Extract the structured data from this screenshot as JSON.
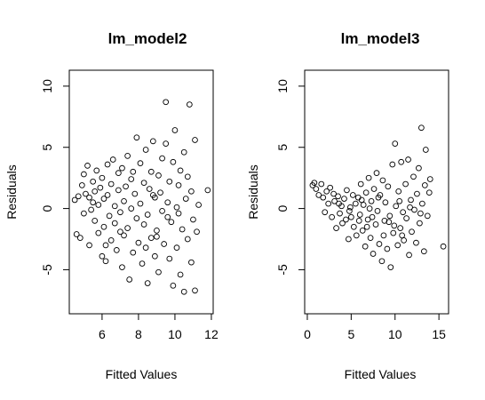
{
  "chart_data": [
    {
      "type": "scatter",
      "title": "lm_model2",
      "xlabel": "Fitted Values",
      "ylabel": "Residuals",
      "xlim": [
        4.2,
        12.1
      ],
      "ylim": [
        -8.6,
        11.3
      ],
      "xticks": [
        6,
        8,
        10,
        12
      ],
      "yticks": [
        -5,
        0,
        5,
        10
      ],
      "points": [
        [
          4.5,
          0.7
        ],
        [
          4.6,
          -2.1
        ],
        [
          4.7,
          1.0
        ],
        [
          4.8,
          -2.4
        ],
        [
          4.9,
          1.9
        ],
        [
          5.0,
          2.8
        ],
        [
          5.0,
          -0.4
        ],
        [
          5.1,
          1.2
        ],
        [
          5.2,
          3.5
        ],
        [
          5.3,
          -3.0
        ],
        [
          5.3,
          0.9
        ],
        [
          5.4,
          -0.1
        ],
        [
          5.5,
          2.2
        ],
        [
          5.6,
          1.4
        ],
        [
          5.6,
          -1.0
        ],
        [
          5.7,
          3.1
        ],
        [
          5.8,
          -2.0
        ],
        [
          5.8,
          0.3
        ],
        [
          5.9,
          1.7
        ],
        [
          6.0,
          -3.9
        ],
        [
          6.0,
          2.5
        ],
        [
          6.1,
          -1.5
        ],
        [
          6.1,
          0.8
        ],
        [
          6.2,
          -4.3
        ],
        [
          6.3,
          1.1
        ],
        [
          6.3,
          3.6
        ],
        [
          6.4,
          -0.6
        ],
        [
          6.5,
          2.0
        ],
        [
          6.5,
          -2.6
        ],
        [
          6.6,
          4.0
        ],
        [
          6.7,
          -1.2
        ],
        [
          6.7,
          0.2
        ],
        [
          6.8,
          -3.4
        ],
        [
          6.9,
          1.5
        ],
        [
          6.9,
          2.9
        ],
        [
          7.0,
          -0.3
        ],
        [
          7.1,
          -4.8
        ],
        [
          7.1,
          3.3
        ],
        [
          7.2,
          0.6
        ],
        [
          7.2,
          -2.2
        ],
        [
          7.3,
          1.8
        ],
        [
          7.4,
          -1.6
        ],
        [
          7.4,
          4.3
        ],
        [
          7.5,
          -5.8
        ],
        [
          7.6,
          0.0
        ],
        [
          7.6,
          2.4
        ],
        [
          7.7,
          -3.6
        ],
        [
          7.8,
          1.2
        ],
        [
          7.9,
          -0.8
        ],
        [
          7.9,
          5.8
        ],
        [
          8.0,
          -2.8
        ],
        [
          8.1,
          3.7
        ],
        [
          8.1,
          0.4
        ],
        [
          8.2,
          -4.5
        ],
        [
          8.3,
          2.1
        ],
        [
          8.3,
          -1.3
        ],
        [
          8.4,
          4.8
        ],
        [
          8.5,
          -0.5
        ],
        [
          8.5,
          -6.1
        ],
        [
          8.6,
          1.6
        ],
        [
          8.7,
          -2.4
        ],
        [
          8.7,
          3.0
        ],
        [
          8.8,
          5.5
        ],
        [
          8.9,
          -3.9
        ],
        [
          8.9,
          0.9
        ],
        [
          9.0,
          -1.8
        ],
        [
          9.1,
          2.7
        ],
        [
          9.1,
          -5.2
        ],
        [
          9.2,
          1.3
        ],
        [
          9.3,
          -0.2
        ],
        [
          9.3,
          4.1
        ],
        [
          9.4,
          -2.9
        ],
        [
          9.5,
          5.3
        ],
        [
          9.5,
          8.7
        ],
        [
          9.6,
          0.5
        ],
        [
          9.7,
          -4.1
        ],
        [
          9.7,
          2.2
        ],
        [
          9.8,
          -1.1
        ],
        [
          9.9,
          3.8
        ],
        [
          9.9,
          -6.3
        ],
        [
          10.0,
          6.4
        ],
        [
          10.1,
          0.1
        ],
        [
          10.1,
          -3.2
        ],
        [
          10.2,
          1.9
        ],
        [
          10.3,
          -5.4
        ],
        [
          10.3,
          3.1
        ],
        [
          10.4,
          -1.7
        ],
        [
          10.5,
          4.6
        ],
        [
          10.5,
          -6.8
        ],
        [
          10.6,
          0.8
        ],
        [
          10.7,
          -2.5
        ],
        [
          10.7,
          2.6
        ],
        [
          10.8,
          8.5
        ],
        [
          10.9,
          -4.4
        ],
        [
          10.9,
          1.4
        ],
        [
          11.0,
          -0.9
        ],
        [
          11.1,
          5.6
        ],
        [
          11.1,
          -6.7
        ],
        [
          11.2,
          -1.9
        ],
        [
          11.3,
          0.3
        ],
        [
          11.8,
          1.5
        ],
        [
          9.0,
          -2.3
        ],
        [
          7.0,
          -1.9
        ],
        [
          6.2,
          -3.0
        ],
        [
          5.5,
          0.5
        ],
        [
          8.4,
          -3.2
        ],
        [
          9.6,
          -0.7
        ],
        [
          10.2,
          -0.4
        ],
        [
          7.7,
          3.0
        ],
        [
          8.8,
          1.1
        ]
      ]
    },
    {
      "type": "scatter",
      "title": "lm_model3",
      "xlabel": "Fitted Values",
      "ylabel": "Residuals",
      "xlim": [
        -0.3,
        16.1
      ],
      "ylim": [
        -8.6,
        11.3
      ],
      "xticks": [
        0,
        5,
        10,
        15
      ],
      "yticks": [
        -5,
        0,
        5,
        10
      ],
      "points": [
        [
          0.6,
          1.9
        ],
        [
          0.8,
          2.1
        ],
        [
          1.0,
          1.6
        ],
        [
          1.3,
          1.1
        ],
        [
          1.6,
          2.0
        ],
        [
          1.8,
          0.9
        ],
        [
          2.0,
          -0.3
        ],
        [
          2.2,
          1.4
        ],
        [
          2.4,
          0.4
        ],
        [
          2.6,
          1.7
        ],
        [
          2.8,
          -0.7
        ],
        [
          3.0,
          1.2
        ],
        [
          3.1,
          0.6
        ],
        [
          3.3,
          -1.6
        ],
        [
          3.5,
          1.0
        ],
        [
          3.7,
          -0.4
        ],
        [
          3.9,
          0.2
        ],
        [
          4.0,
          -1.2
        ],
        [
          4.2,
          0.8
        ],
        [
          4.4,
          -0.9
        ],
        [
          4.5,
          1.5
        ],
        [
          4.7,
          -2.5
        ],
        [
          4.9,
          0.1
        ],
        [
          5.0,
          -0.7
        ],
        [
          5.2,
          1.1
        ],
        [
          5.3,
          -1.5
        ],
        [
          5.5,
          0.4
        ],
        [
          5.6,
          -2.2
        ],
        [
          5.8,
          0.9
        ],
        [
          6.0,
          -0.5
        ],
        [
          6.1,
          2.0
        ],
        [
          6.3,
          -1.8
        ],
        [
          6.4,
          0.3
        ],
        [
          6.6,
          -3.1
        ],
        [
          6.7,
          1.3
        ],
        [
          6.9,
          -0.9
        ],
        [
          7.0,
          2.5
        ],
        [
          7.2,
          -2.4
        ],
        [
          7.3,
          0.6
        ],
        [
          7.5,
          -3.7
        ],
        [
          7.6,
          1.6
        ],
        [
          7.8,
          -1.3
        ],
        [
          7.9,
          2.9
        ],
        [
          8.0,
          -0.2
        ],
        [
          8.2,
          -2.9
        ],
        [
          8.3,
          1.1
        ],
        [
          8.5,
          -4.3
        ],
        [
          8.6,
          2.3
        ],
        [
          8.8,
          -1.0
        ],
        [
          8.9,
          0.5
        ],
        [
          9.1,
          -3.3
        ],
        [
          9.2,
          1.8
        ],
        [
          9.4,
          -0.6
        ],
        [
          9.5,
          -4.8
        ],
        [
          9.7,
          3.6
        ],
        [
          9.8,
          -2.0
        ],
        [
          10.0,
          5.3
        ],
        [
          10.1,
          0.2
        ],
        [
          10.3,
          -3.0
        ],
        [
          10.4,
          1.4
        ],
        [
          10.6,
          -1.6
        ],
        [
          10.7,
          3.8
        ],
        [
          10.9,
          -0.3
        ],
        [
          11.0,
          -2.6
        ],
        [
          11.2,
          2.0
        ],
        [
          11.3,
          -0.8
        ],
        [
          11.5,
          4.0
        ],
        [
          11.6,
          -3.8
        ],
        [
          11.8,
          0.7
        ],
        [
          11.9,
          -1.9
        ],
        [
          12.1,
          2.6
        ],
        [
          12.2,
          -0.1
        ],
        [
          12.4,
          -2.8
        ],
        [
          12.5,
          1.2
        ],
        [
          12.7,
          3.3
        ],
        [
          12.8,
          -1.2
        ],
        [
          13.0,
          6.6
        ],
        [
          13.1,
          0.4
        ],
        [
          13.3,
          -3.5
        ],
        [
          13.4,
          1.9
        ],
        [
          13.5,
          4.8
        ],
        [
          13.7,
          -0.6
        ],
        [
          13.9,
          1.3
        ],
        [
          14.0,
          2.4
        ],
        [
          15.5,
          -3.1
        ],
        [
          6.8,
          -1.5
        ],
        [
          8.1,
          0.9
        ],
        [
          9.3,
          -1.1
        ],
        [
          10.5,
          0.6
        ],
        [
          7.4,
          -0.7
        ],
        [
          5.9,
          -1.0
        ],
        [
          11.7,
          0.1
        ],
        [
          12.9,
          -0.4
        ],
        [
          3.6,
          0.4
        ],
        [
          4.8,
          -0.2
        ],
        [
          9.9,
          -1.4
        ],
        [
          8.7,
          -2.2
        ],
        [
          7.1,
          0.0
        ],
        [
          10.8,
          -2.2
        ],
        [
          6.2,
          0.7
        ]
      ]
    }
  ]
}
